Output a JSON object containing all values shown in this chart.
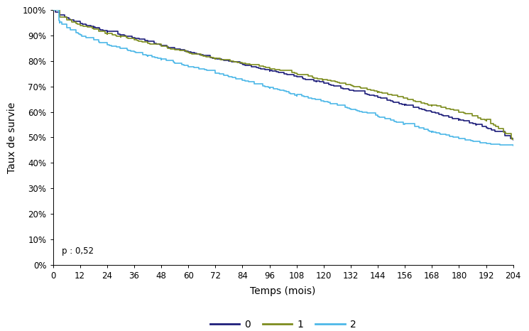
{
  "title": "",
  "xlabel": "Temps (mois)",
  "ylabel": "Taux de survie",
  "xlim": [
    0,
    204
  ],
  "ylim": [
    0,
    1.0
  ],
  "xticks": [
    0,
    12,
    24,
    36,
    48,
    60,
    72,
    84,
    96,
    108,
    120,
    132,
    144,
    156,
    168,
    180,
    192,
    204
  ],
  "yticks": [
    0.0,
    0.1,
    0.2,
    0.3,
    0.4,
    0.5,
    0.6,
    0.7,
    0.8,
    0.9,
    1.0
  ],
  "p_value": "p : 0,52",
  "legend_labels": [
    "0",
    "1",
    "2"
  ],
  "line_colors": [
    "#1e1e7a",
    "#7d8c1e",
    "#4db8e8"
  ],
  "background_color": "#ffffff",
  "curve0_anchors_t": [
    0,
    3,
    6,
    12,
    18,
    24,
    30,
    36,
    42,
    48,
    54,
    60,
    72,
    84,
    96,
    108,
    120,
    132,
    144,
    156,
    168,
    180,
    192,
    204
  ],
  "curve0_anchors_s": [
    1.0,
    0.98,
    0.968,
    0.948,
    0.932,
    0.916,
    0.903,
    0.89,
    0.876,
    0.862,
    0.848,
    0.835,
    0.81,
    0.787,
    0.762,
    0.737,
    0.712,
    0.685,
    0.657,
    0.628,
    0.6,
    0.57,
    0.538,
    0.49
  ],
  "curve1_anchors_t": [
    0,
    3,
    6,
    12,
    18,
    24,
    30,
    36,
    42,
    48,
    54,
    60,
    72,
    84,
    96,
    108,
    120,
    132,
    144,
    156,
    168,
    180,
    192,
    204
  ],
  "curve1_anchors_s": [
    1.0,
    0.972,
    0.962,
    0.94,
    0.924,
    0.908,
    0.896,
    0.882,
    0.869,
    0.857,
    0.844,
    0.832,
    0.81,
    0.791,
    0.77,
    0.749,
    0.728,
    0.704,
    0.679,
    0.653,
    0.627,
    0.6,
    0.57,
    0.49
  ],
  "curve2_anchors_t": [
    0,
    3,
    6,
    12,
    18,
    24,
    30,
    36,
    42,
    48,
    54,
    60,
    72,
    84,
    96,
    108,
    120,
    132,
    144,
    156,
    168,
    180,
    192,
    204
  ],
  "curve2_anchors_s": [
    1.0,
    0.952,
    0.93,
    0.902,
    0.882,
    0.864,
    0.85,
    0.836,
    0.822,
    0.808,
    0.793,
    0.778,
    0.752,
    0.724,
    0.695,
    0.668,
    0.64,
    0.611,
    0.582,
    0.553,
    0.522,
    0.495,
    0.475,
    0.47
  ]
}
